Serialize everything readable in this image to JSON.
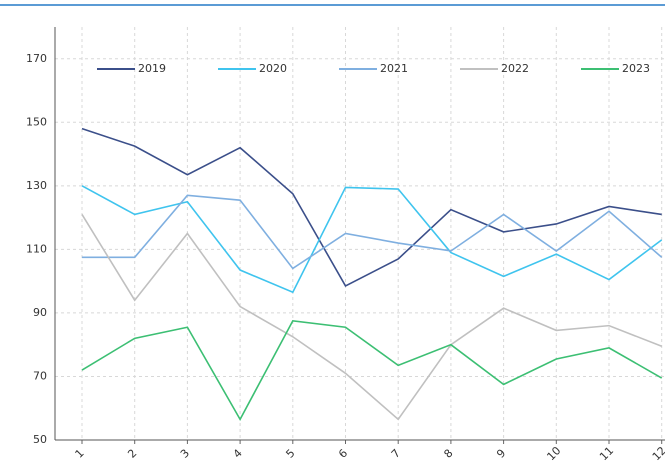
{
  "chart_data": {
    "type": "line",
    "categories": [
      "1",
      "2",
      "3",
      "4",
      "5",
      "6",
      "7",
      "8",
      "9",
      "10",
      "11",
      "12"
    ],
    "series": [
      {
        "name": "2019",
        "color": "#3b4f8a",
        "values": [
          148,
          142.5,
          133.5,
          142,
          127.5,
          98.5,
          107,
          122.5,
          115.5,
          118,
          123.5,
          121
        ]
      },
      {
        "name": "2020",
        "color": "#3fc4ee",
        "values": [
          130,
          121,
          125,
          103.5,
          96.5,
          129.5,
          129,
          109,
          101.5,
          108.5,
          100.5,
          113
        ]
      },
      {
        "name": "2021",
        "color": "#7fafe0",
        "values": [
          107.5,
          107.5,
          127,
          125.5,
          104,
          115,
          112,
          109.5,
          121,
          109.5,
          122,
          107.5
        ]
      },
      {
        "name": "2022",
        "color": "#c0c0c0",
        "values": [
          121,
          94,
          115,
          92,
          82.5,
          71,
          56.5,
          80,
          91.5,
          84.5,
          86,
          79.5
        ]
      },
      {
        "name": "2023",
        "color": "#3cbf73",
        "values": [
          72,
          82,
          85.5,
          56.5,
          87.5,
          85.5,
          73.5,
          80,
          67.5,
          75.5,
          79,
          69.5
        ]
      }
    ],
    "ylim": [
      50,
      180
    ],
    "yticks": [
      50,
      70,
      90,
      110,
      130,
      150,
      170
    ],
    "grid": true,
    "legend": "top"
  }
}
